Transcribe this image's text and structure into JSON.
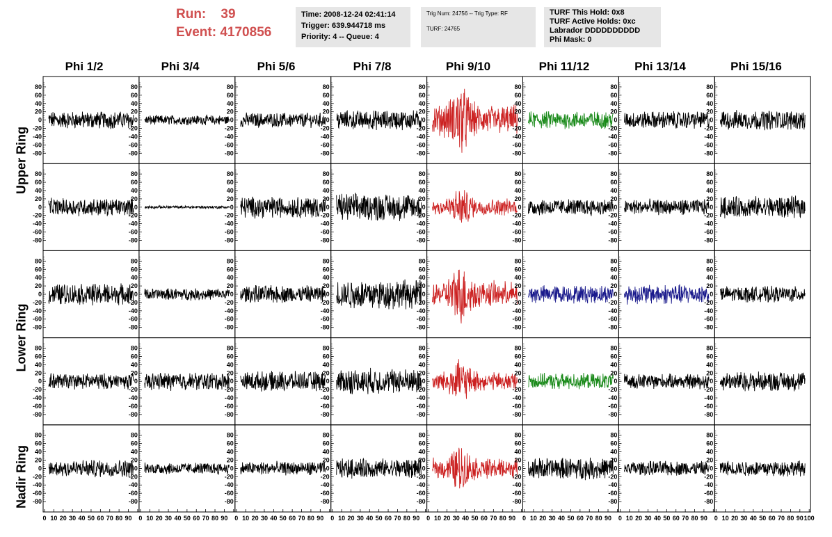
{
  "header": {
    "run_label": "Run:",
    "run_value": "39",
    "event_label": "Event:",
    "event_value": "4170856",
    "time_info": [
      "Time: 2008-12-24 02:41:14",
      "Trigger: 639.944718 ms",
      "Priority: 4 -- Queue: 4"
    ],
    "trig_info": [
      "Trig Num: 24756 -- Trig Type: RF",
      "",
      "TURF: 24765"
    ],
    "turf_info": [
      "TURF This Hold: 0x8",
      "TURF Active Holds: 0xc",
      "Labrador DDDDDDDDDD",
      "Phi Mask: 0"
    ]
  },
  "columns": [
    "Phi 1/2",
    "Phi 3/4",
    "Phi 5/6",
    "Phi 7/8",
    "Phi 9/10",
    "Phi 11/12",
    "Phi 13/14",
    "Phi 15/16"
  ],
  "ring_labels": [
    "Upper Ring",
    "Lower Ring",
    "Nadir Ring"
  ],
  "colors": {
    "black": "#000000",
    "red": "#cc2222",
    "green": "#1a8a1a",
    "blue": "#1a1a8c",
    "header_red": "#d05050",
    "box_grey": "#e6e6e6"
  },
  "chart_data": {
    "type": "line",
    "y_ticks": [
      "80",
      "60",
      "40",
      "20",
      "0",
      "-20",
      "-40",
      "-60",
      "-80"
    ],
    "ylim": [
      -95,
      95
    ],
    "xlim": [
      0,
      100
    ],
    "x_ticks": [
      "0",
      "10",
      "20",
      "30",
      "40",
      "50",
      "60",
      "70",
      "80",
      "90",
      "100"
    ],
    "panel_colors": [
      [
        "black",
        "black",
        "black",
        "black",
        "red",
        "green",
        "black",
        "black"
      ],
      [
        "black",
        "black",
        "black",
        "black",
        "red",
        "black",
        "black",
        "black"
      ],
      [
        "black",
        "black",
        "black",
        "black",
        "red",
        "blue",
        "blue",
        "black"
      ],
      [
        "black",
        "black",
        "black",
        "black",
        "red",
        "green",
        "black",
        "black"
      ],
      [
        "black",
        "black",
        "black",
        "black",
        "red",
        "black",
        "black",
        "black"
      ]
    ],
    "panel_amplitudes": [
      [
        18,
        10,
        15,
        20,
        45,
        18,
        18,
        20
      ],
      [
        18,
        3,
        22,
        28,
        25,
        17,
        16,
        22
      ],
      [
        22,
        12,
        18,
        30,
        38,
        18,
        20,
        16
      ],
      [
        16,
        18,
        20,
        26,
        28,
        16,
        15,
        20
      ],
      [
        18,
        12,
        14,
        20,
        30,
        22,
        15,
        16
      ]
    ]
  }
}
